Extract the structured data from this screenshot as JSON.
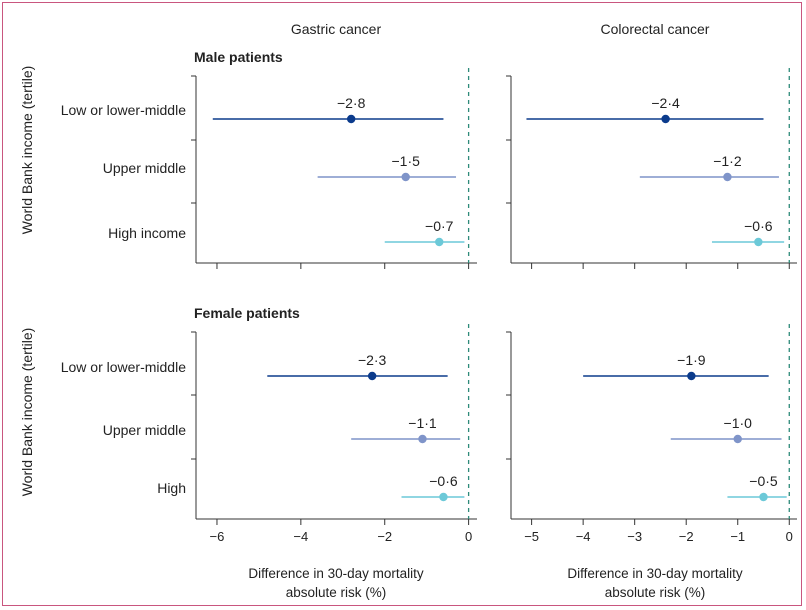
{
  "chart_data": {
    "type": "forest",
    "columns": [
      "Gastric cancer",
      "Colorectal cancer"
    ],
    "ylabel": "World Bank income (tertile)",
    "xlabel_line1": "Difference in 30-day mortality",
    "xlabel_line2": "absolute risk (%)",
    "x_axes": [
      {
        "xlim": [
          -6.5,
          0.2
        ],
        "ticks": [
          -6,
          -4,
          -2,
          0
        ],
        "tick_labels": [
          "−6",
          "−4",
          "−2",
          "0"
        ]
      },
      {
        "xlim": [
          -5.4,
          0.15
        ],
        "ticks": [
          -5,
          -4,
          -3,
          -2,
          -1,
          0
        ],
        "tick_labels": [
          "−5",
          "−4",
          "−3",
          "−2",
          "−1",
          "0"
        ]
      }
    ],
    "series_colors": [
      "#0b3b8c",
      "#7f94c9",
      "#6cc9d8"
    ],
    "panels_rows": [
      {
        "title": "Male patients",
        "categories": [
          "Low or lower-middle",
          "Upper middle",
          "High income"
        ],
        "columns": [
          {
            "points": [
              {
                "est": -2.8,
                "lo": -6.1,
                "hi": -0.6,
                "label": "−2·8"
              },
              {
                "est": -1.5,
                "lo": -3.6,
                "hi": -0.3,
                "label": "−1·5"
              },
              {
                "est": -0.7,
                "lo": -2.0,
                "hi": -0.1,
                "label": "−0·7"
              }
            ]
          },
          {
            "points": [
              {
                "est": -2.4,
                "lo": -5.1,
                "hi": -0.5,
                "label": "−2·4"
              },
              {
                "est": -1.2,
                "lo": -2.9,
                "hi": -0.2,
                "label": "−1·2"
              },
              {
                "est": -0.6,
                "lo": -1.5,
                "hi": -0.1,
                "label": "−0·6"
              }
            ]
          }
        ]
      },
      {
        "title": "Female patients",
        "categories": [
          "Low or lower-middle",
          "Upper middle",
          "High"
        ],
        "columns": [
          {
            "points": [
              {
                "est": -2.3,
                "lo": -4.8,
                "hi": -0.5,
                "label": "−2·3"
              },
              {
                "est": -1.1,
                "lo": -2.8,
                "hi": -0.2,
                "label": "−1·1"
              },
              {
                "est": -0.6,
                "lo": -1.6,
                "hi": -0.1,
                "label": "−0·6"
              }
            ]
          },
          {
            "points": [
              {
                "est": -1.9,
                "lo": -4.0,
                "hi": -0.4,
                "label": "−1·9"
              },
              {
                "est": -1.0,
                "lo": -2.3,
                "hi": -0.15,
                "label": "−1·0"
              },
              {
                "est": -0.5,
                "lo": -1.2,
                "hi": -0.05,
                "label": "−0·5"
              }
            ]
          }
        ]
      }
    ]
  }
}
